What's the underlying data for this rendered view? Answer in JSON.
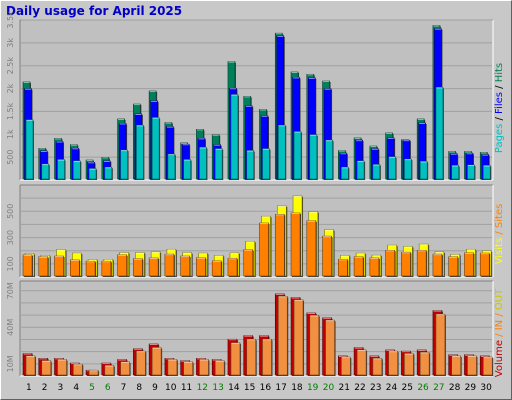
{
  "title": "Daily usage for April 2025",
  "colors": {
    "pages": "#00c0c0",
    "files": "#0000ff",
    "hits": "#00805a",
    "visits": "#ffff00",
    "sites": "#ff8000",
    "volume": "#c00000",
    "in": "#ff8000",
    "out": "#00c000",
    "weekend": "#008000",
    "weekday": "#000000"
  },
  "chart_data": [
    {
      "type": "bar",
      "panel": "top",
      "ytick_labels": [
        "3.5k",
        "3k",
        "2.5k",
        "2k",
        "1.5k",
        "1k",
        "500"
      ],
      "ylim": [
        0,
        3500
      ],
      "legend": [
        "Pages",
        "Files",
        "Hits"
      ],
      "categories": [
        "1",
        "2",
        "3",
        "4",
        "5",
        "6",
        "7",
        "8",
        "9",
        "10",
        "11",
        "12",
        "13",
        "14",
        "15",
        "16",
        "17",
        "18",
        "19",
        "20",
        "21",
        "22",
        "23",
        "24",
        "25",
        "26",
        "27",
        "28",
        "29",
        "30"
      ],
      "series": [
        {
          "name": "Hits",
          "values": [
            2150,
            680,
            900,
            760,
            420,
            480,
            1330,
            1660,
            1950,
            1250,
            800,
            1100,
            980,
            2600,
            1830,
            1540,
            3230,
            2370,
            2320,
            2170,
            630,
            910,
            730,
            1020,
            870,
            1330,
            3400,
            610,
            610,
            590
          ]
        },
        {
          "name": "Files",
          "values": [
            2000,
            620,
            830,
            680,
            370,
            400,
            1230,
            1440,
            1730,
            1160,
            770,
            900,
            760,
            2010,
            1620,
            1400,
            3170,
            2250,
            2240,
            2000,
            570,
            860,
            670,
            910,
            860,
            1240,
            3330,
            560,
            570,
            540
          ]
        },
        {
          "name": "Pages",
          "values": [
            1310,
            330,
            430,
            400,
            230,
            260,
            640,
            1190,
            1360,
            550,
            430,
            700,
            670,
            1870,
            630,
            670,
            1190,
            1050,
            980,
            860,
            260,
            400,
            320,
            490,
            440,
            390,
            2030,
            300,
            310,
            300
          ]
        }
      ]
    },
    {
      "type": "bar",
      "panel": "middle",
      "ytick_labels": [
        "500",
        "300",
        "100"
      ],
      "ylim": [
        0,
        700
      ],
      "legend": [
        "Sites",
        "Visits"
      ],
      "categories": [
        "1",
        "2",
        "3",
        "4",
        "5",
        "6",
        "7",
        "8",
        "9",
        "10",
        "11",
        "12",
        "13",
        "14",
        "15",
        "16",
        "17",
        "18",
        "19",
        "20",
        "21",
        "22",
        "23",
        "24",
        "25",
        "26",
        "27",
        "28",
        "29",
        "30"
      ],
      "series": [
        {
          "name": "Visits",
          "values": [
            175,
            160,
            205,
            178,
            128,
            130,
            182,
            182,
            188,
            208,
            182,
            178,
            160,
            180,
            270,
            465,
            545,
            623,
            500,
            360,
            160,
            178,
            162,
            240,
            230,
            248,
            188,
            168,
            208,
            195
          ]
        },
        {
          "name": "Sites",
          "values": [
            165,
            150,
            155,
            125,
            115,
            115,
            165,
            135,
            140,
            170,
            155,
            142,
            118,
            138,
            205,
            412,
            480,
            490,
            430,
            310,
            130,
            150,
            140,
            200,
            185,
            200,
            170,
            150,
            180,
            178
          ]
        }
      ]
    },
    {
      "type": "bar",
      "panel": "bottom",
      "ytick_labels": [
        "70M",
        "40M",
        "10M"
      ],
      "ylim": [
        0,
        78
      ],
      "legend": [
        "Volume",
        "IN",
        "OUT"
      ],
      "categories": [
        "1",
        "2",
        "3",
        "4",
        "5",
        "6",
        "7",
        "8",
        "9",
        "10",
        "11",
        "12",
        "13",
        "14",
        "15",
        "16",
        "17",
        "18",
        "19",
        "20",
        "21",
        "22",
        "23",
        "24",
        "25",
        "26",
        "27",
        "28",
        "29",
        "30"
      ],
      "series": [
        {
          "name": "Volume",
          "values": [
            18,
            14,
            14,
            10,
            4,
            10,
            13,
            22,
            26,
            14,
            12,
            14,
            13,
            30,
            33,
            33,
            68,
            65,
            52,
            48,
            16,
            23,
            16,
            21,
            20,
            21,
            54,
            17,
            17,
            16
          ]
        },
        {
          "name": "OUT",
          "values": [
            16,
            12,
            13,
            9,
            4,
            8,
            11,
            20,
            23,
            13,
            11,
            13,
            12,
            27,
            30,
            30,
            66,
            63,
            50,
            46,
            15,
            21,
            14,
            20,
            18,
            19,
            51,
            16,
            16,
            15
          ]
        }
      ]
    }
  ],
  "x_axis": {
    "days": [
      "1",
      "2",
      "3",
      "4",
      "5",
      "6",
      "7",
      "8",
      "9",
      "10",
      "11",
      "12",
      "13",
      "14",
      "15",
      "16",
      "17",
      "18",
      "19",
      "20",
      "21",
      "22",
      "23",
      "24",
      "25",
      "26",
      "27",
      "28",
      "29",
      "30"
    ],
    "weekend_days": [
      "5",
      "6",
      "12",
      "13",
      "19",
      "20",
      "26",
      "27"
    ]
  },
  "side_labels": {
    "top": [
      {
        "text": "Pages",
        "color": "#00c0c0"
      },
      {
        "text": " / ",
        "color": "#000000"
      },
      {
        "text": "Files",
        "color": "#0000ff"
      },
      {
        "text": " / ",
        "color": "#000000"
      },
      {
        "text": "Hits",
        "color": "#00805a"
      }
    ],
    "middle": [
      {
        "text": "Visits",
        "color": "#ffff00"
      },
      {
        "text": " / ",
        "color": "#ff8000"
      },
      {
        "text": "Sites",
        "color": "#ff8000"
      }
    ],
    "bottom": [
      {
        "text": "Volume",
        "color": "#c00000"
      },
      {
        "text": " / ",
        "color": "#ff8000"
      },
      {
        "text": "IN",
        "color": "#ff8000"
      },
      {
        "text": " / ",
        "color": "#ff8000"
      },
      {
        "text": "OUT",
        "color": "#c8c800"
      }
    ]
  }
}
